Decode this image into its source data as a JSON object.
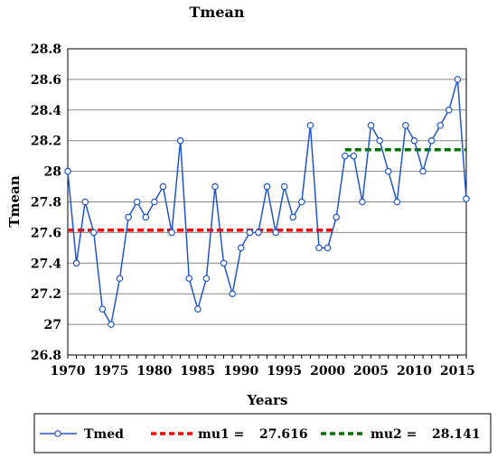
{
  "chart_data": {
    "type": "line",
    "title": "Tmean",
    "xlabel": "Years",
    "ylabel": "Tmean",
    "xlim": [
      1970,
      2016
    ],
    "ylim": [
      26.8,
      28.8
    ],
    "x_ticks": [
      "1970",
      "1975",
      "1980",
      "1985",
      "1990",
      "1995",
      "2000",
      "2005",
      "2010",
      "2015"
    ],
    "y_ticks": [
      "26.8",
      "27",
      "27.2",
      "27.4",
      "27.6",
      "27.8",
      "28",
      "28.2",
      "28.4",
      "28.6",
      "28.8"
    ],
    "grid": "horizontal",
    "legend_position": "bottom",
    "series": [
      {
        "name": "Tmed",
        "color": "#2255cc",
        "marker": "open-circle",
        "x": [
          1970,
          1971,
          1972,
          1973,
          1974,
          1975,
          1976,
          1977,
          1978,
          1979,
          1980,
          1981,
          1982,
          1983,
          1984,
          1985,
          1986,
          1987,
          1988,
          1989,
          1990,
          1991,
          1992,
          1993,
          1994,
          1995,
          1996,
          1997,
          1998,
          1999,
          2000,
          2001,
          2002,
          2003,
          2004,
          2005,
          2006,
          2007,
          2008,
          2009,
          2010,
          2011,
          2012,
          2013,
          2014,
          2015,
          2016
        ],
        "values": [
          28.0,
          27.4,
          27.8,
          27.6,
          27.1,
          27.0,
          27.3,
          27.7,
          27.8,
          27.7,
          27.8,
          27.9,
          27.6,
          28.2,
          27.3,
          27.1,
          27.3,
          27.9,
          27.4,
          27.2,
          27.5,
          27.6,
          27.6,
          27.9,
          27.6,
          27.9,
          27.7,
          27.8,
          28.3,
          27.5,
          27.5,
          27.7,
          28.1,
          28.1,
          27.8,
          28.3,
          28.2,
          28.0,
          27.8,
          28.3,
          28.2,
          28.0,
          28.2,
          28.3,
          28.4,
          28.6,
          27.82
        ]
      }
    ],
    "reference_lines": [
      {
        "name": "mu1",
        "label": "mu1 =",
        "value_text": "27.616",
        "value": 27.616,
        "x_start": 1970,
        "x_end": 2001,
        "color": "#ff0000",
        "style": "dashed"
      },
      {
        "name": "mu2",
        "label": "mu2 =",
        "value_text": "28.141",
        "value": 28.141,
        "x_start": 2002,
        "x_end": 2016,
        "color": "#007000",
        "style": "dashed"
      }
    ]
  }
}
